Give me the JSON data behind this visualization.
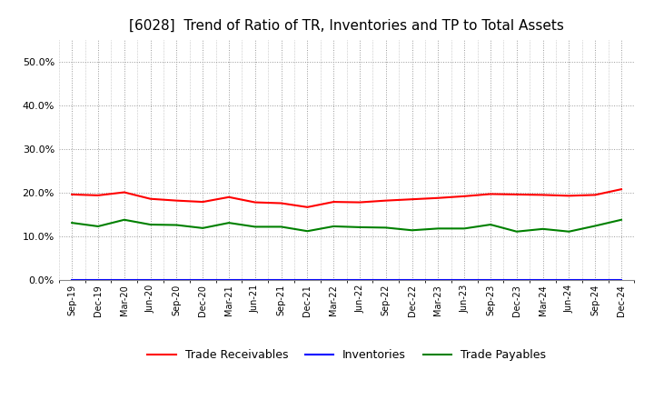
{
  "title": "[6028]  Trend of Ratio of TR, Inventories and TP to Total Assets",
  "x_labels": [
    "Sep-19",
    "Dec-19",
    "Mar-20",
    "Jun-20",
    "Sep-20",
    "Dec-20",
    "Mar-21",
    "Jun-21",
    "Sep-21",
    "Dec-21",
    "Mar-22",
    "Jun-22",
    "Sep-22",
    "Dec-22",
    "Mar-23",
    "Jun-23",
    "Sep-23",
    "Dec-23",
    "Mar-24",
    "Jun-24",
    "Sep-24",
    "Dec-24"
  ],
  "trade_receivables": [
    0.196,
    0.194,
    0.201,
    0.186,
    0.182,
    0.179,
    0.19,
    0.178,
    0.176,
    0.167,
    0.179,
    0.178,
    0.182,
    0.185,
    0.188,
    0.192,
    0.197,
    0.196,
    0.195,
    0.193,
    0.195,
    0.208
  ],
  "inventories": [
    0.001,
    0.001,
    0.001,
    0.001,
    0.001,
    0.001,
    0.001,
    0.001,
    0.001,
    0.001,
    0.001,
    0.001,
    0.001,
    0.001,
    0.001,
    0.001,
    0.001,
    0.001,
    0.001,
    0.001,
    0.001,
    0.001
  ],
  "trade_payables": [
    0.131,
    0.123,
    0.138,
    0.127,
    0.126,
    0.119,
    0.131,
    0.122,
    0.122,
    0.112,
    0.123,
    0.121,
    0.12,
    0.114,
    0.118,
    0.118,
    0.127,
    0.111,
    0.117,
    0.111,
    0.124,
    0.138
  ],
  "tr_color": "#ff0000",
  "inv_color": "#0000ff",
  "tp_color": "#008000",
  "ylim": [
    0.0,
    0.55
  ],
  "yticks": [
    0.0,
    0.1,
    0.2,
    0.3,
    0.4,
    0.5
  ],
  "background_color": "#ffffff",
  "grid_color": "#999999",
  "title_fontsize": 11,
  "legend_labels": [
    "Trade Receivables",
    "Inventories",
    "Trade Payables"
  ]
}
